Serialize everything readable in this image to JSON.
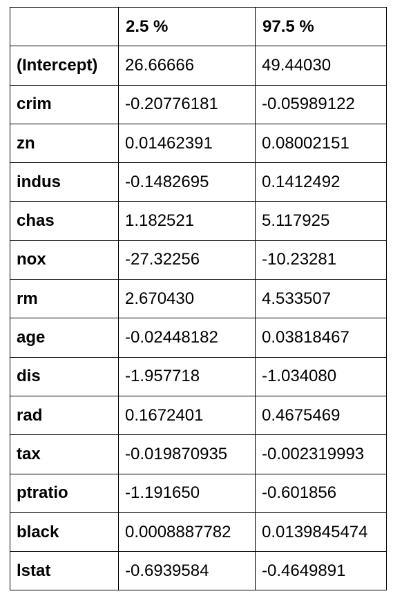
{
  "table": {
    "columns": [
      "",
      "2.5 %",
      "97.5 %"
    ],
    "rows": [
      {
        "label": "(Intercept)",
        "low": "26.66666",
        "high": "49.44030"
      },
      {
        "label": "crim",
        "low": "-0.20776181",
        "high": "-0.05989122"
      },
      {
        "label": "zn",
        "low": "0.01462391",
        "high": "0.08002151"
      },
      {
        "label": "indus",
        "low": "-0.1482695",
        "high": "0.1412492"
      },
      {
        "label": "chas",
        "low": "1.182521",
        "high": "5.117925"
      },
      {
        "label": "nox",
        "low": "-27.32256",
        "high": "-10.23281"
      },
      {
        "label": "rm",
        "low": "2.670430",
        "high": "4.533507"
      },
      {
        "label": "age",
        "low": "-0.02448182",
        "high": "0.03818467"
      },
      {
        "label": "dis",
        "low": "-1.957718",
        "high": "-1.034080"
      },
      {
        "label": "rad",
        "low": "0.1672401",
        "high": "0.4675469"
      },
      {
        "label": "tax",
        "low": "-0.019870935",
        "high": "-0.002319993"
      },
      {
        "label": "ptratio",
        "low": "-1.191650",
        "high": "-0.601856"
      },
      {
        "label": "black",
        "low": "0.0008887782",
        "high": "0.0139845474"
      },
      {
        "label": "lstat",
        "low": "-0.6939584",
        "high": "-0.4649891"
      }
    ]
  }
}
